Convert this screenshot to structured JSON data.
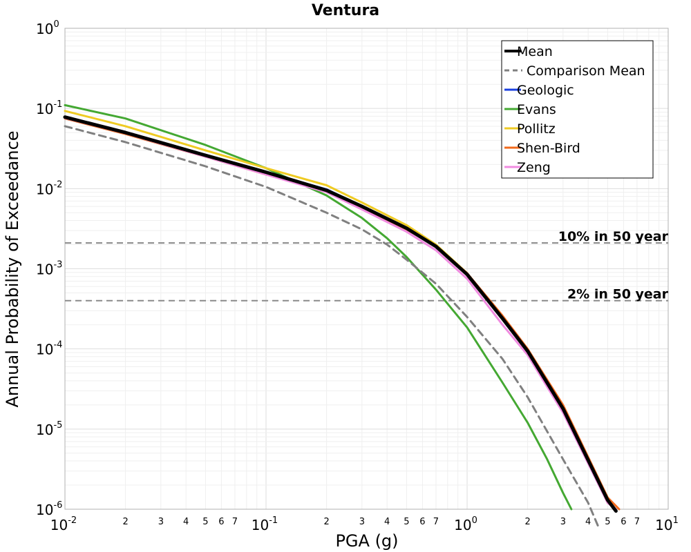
{
  "chart_data": {
    "type": "line",
    "title": "Ventura",
    "xlabel": "PGA (g)",
    "ylabel": "Annual Probability of Exceedance",
    "x_scale": "log",
    "y_scale": "log",
    "xlim": [
      0.01,
      10
    ],
    "ylim": [
      1e-06,
      1
    ],
    "grid": true,
    "legend_position": "top-right",
    "x_major_ticks": [
      {
        "base": "10",
        "exp": "-2",
        "value": 0.01
      },
      {
        "base": "10",
        "exp": "-1",
        "value": 0.1
      },
      {
        "base": "10",
        "exp": "0",
        "value": 1
      },
      {
        "base": "10",
        "exp": "1",
        "value": 10
      }
    ],
    "x_minor_tick_labels": [
      "2",
      "3",
      "4",
      "5",
      "6",
      "7"
    ],
    "y_major_ticks": [
      {
        "base": "10",
        "exp": "0",
        "value": 1
      },
      {
        "base": "10",
        "exp": "-1",
        "value": 0.1
      },
      {
        "base": "10",
        "exp": "-2",
        "value": 0.01
      },
      {
        "base": "10",
        "exp": "-3",
        "value": 0.001
      },
      {
        "base": "10",
        "exp": "-4",
        "value": 0.0001
      },
      {
        "base": "10",
        "exp": "-5",
        "value": 1e-05
      },
      {
        "base": "10",
        "exp": "-6",
        "value": 1e-06
      }
    ],
    "reference_lines": [
      {
        "label": "10% in 50 year",
        "y": 0.0021,
        "color": "#888888"
      },
      {
        "label": "2% in 50 year",
        "y": 0.0004,
        "color": "#888888"
      }
    ],
    "series": [
      {
        "name": "Geologic",
        "color": "#1a3fe0",
        "width": 3,
        "dash": false,
        "x": [
          0.01,
          0.02,
          0.05,
          0.1,
          0.2,
          0.3,
          0.5,
          0.7,
          1.0,
          1.5,
          2.0,
          3.0,
          5.0
        ],
        "y": [
          0.078,
          0.05,
          0.026,
          0.016,
          0.0098,
          0.006,
          0.0032,
          0.0019,
          0.00085,
          0.00024,
          9.4e-05,
          1.8e-05,
          1.2e-06
        ]
      },
      {
        "name": "Evans",
        "color": "#44a832",
        "width": 3,
        "dash": false,
        "x": [
          0.01,
          0.02,
          0.05,
          0.1,
          0.2,
          0.3,
          0.4,
          0.5,
          0.7,
          1.0,
          1.5,
          2.0,
          2.5,
          3.0,
          3.3
        ],
        "y": [
          0.11,
          0.075,
          0.035,
          0.018,
          0.0082,
          0.0043,
          0.0024,
          0.0014,
          0.00055,
          0.000185,
          3.8e-05,
          1.2e-05,
          4.2e-06,
          1.6e-06,
          1e-06
        ]
      },
      {
        "name": "Pollitz",
        "color": "#efcb23",
        "width": 3,
        "dash": false,
        "x": [
          0.01,
          0.02,
          0.05,
          0.1,
          0.2,
          0.3,
          0.5,
          0.7,
          1.0,
          1.5,
          2.0,
          3.0,
          5.0
        ],
        "y": [
          0.093,
          0.06,
          0.03,
          0.018,
          0.011,
          0.0067,
          0.0035,
          0.002,
          0.00088,
          0.00024,
          9.4e-05,
          1.8e-05,
          1.2e-06
        ]
      },
      {
        "name": "Shen-Bird",
        "color": "#f26a1b",
        "width": 3,
        "dash": false,
        "x": [
          0.01,
          0.02,
          0.05,
          0.1,
          0.2,
          0.3,
          0.5,
          0.7,
          1.0,
          1.5,
          2.0,
          3.0,
          5.0,
          5.7
        ],
        "y": [
          0.075,
          0.048,
          0.025,
          0.015,
          0.0094,
          0.0058,
          0.0031,
          0.0019,
          0.00088,
          0.00026,
          0.0001,
          2e-05,
          1.4e-06,
          1e-06
        ]
      },
      {
        "name": "Zeng",
        "color": "#f08be0",
        "width": 3,
        "dash": false,
        "x": [
          0.01,
          0.02,
          0.05,
          0.1,
          0.2,
          0.3,
          0.5,
          0.7,
          1.0,
          1.5,
          2.0,
          3.0,
          5.0,
          5.5
        ],
        "y": [
          0.076,
          0.049,
          0.025,
          0.015,
          0.009,
          0.0055,
          0.0029,
          0.0017,
          0.00075,
          0.0002,
          8.4e-05,
          1.6e-05,
          1.2e-06,
          1e-06
        ]
      },
      {
        "name": "Comparison Mean",
        "color": "#808080",
        "width": 3,
        "dash": true,
        "x": [
          0.01,
          0.02,
          0.05,
          0.1,
          0.2,
          0.3,
          0.4,
          0.5,
          0.7,
          1.0,
          1.5,
          2.0,
          3.0,
          4.0,
          4.5
        ],
        "y": [
          0.06,
          0.038,
          0.019,
          0.0105,
          0.005,
          0.0031,
          0.002,
          0.0013,
          0.00065,
          0.00025,
          7.5e-05,
          2.5e-05,
          4.2e-06,
          1.2e-06,
          6e-07
        ]
      },
      {
        "name": "Mean",
        "color": "#000000",
        "width": 5,
        "dash": false,
        "x": [
          0.01,
          0.02,
          0.05,
          0.1,
          0.2,
          0.3,
          0.5,
          0.7,
          1.0,
          1.5,
          2.0,
          3.0,
          5.0,
          5.5
        ],
        "y": [
          0.078,
          0.05,
          0.026,
          0.016,
          0.0095,
          0.006,
          0.0032,
          0.0019,
          0.00085,
          0.00024,
          9.4e-05,
          1.8e-05,
          1.3e-06,
          9.5e-07
        ]
      }
    ],
    "legend": [
      {
        "name": "Mean",
        "color": "#000000",
        "width": 4,
        "dash": false
      },
      {
        "name": "Comparison Mean",
        "color": "#808080",
        "width": 3,
        "dash": true
      },
      {
        "name": "Geologic",
        "color": "#1a3fe0",
        "width": 3,
        "dash": false
      },
      {
        "name": "Evans",
        "color": "#44a832",
        "width": 3,
        "dash": false
      },
      {
        "name": "Pollitz",
        "color": "#efcb23",
        "width": 3,
        "dash": false
      },
      {
        "name": "Shen-Bird",
        "color": "#f26a1b",
        "width": 3,
        "dash": false
      },
      {
        "name": "Zeng",
        "color": "#f08be0",
        "width": 3,
        "dash": false
      }
    ]
  }
}
